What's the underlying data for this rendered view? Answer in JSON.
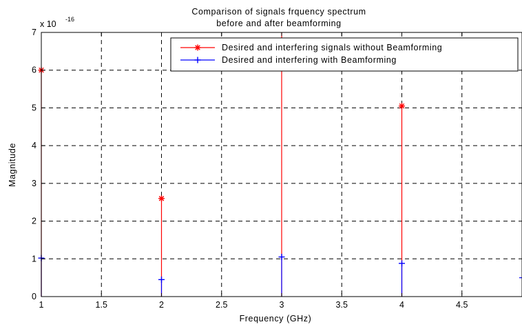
{
  "chart_data": {
    "type": "stem",
    "title_lines": [
      "Comparison of signals frquency spectrum",
      "before and after beamforming"
    ],
    "xlabel": "Frequency (GHz)",
    "ylabel": "Magnitude",
    "y_exponent_label": "x 10",
    "y_exponent": "-16",
    "xlim": [
      1,
      5
    ],
    "ylim": [
      0,
      7
    ],
    "x_ticks": [
      1,
      1.5,
      2,
      2.5,
      3,
      3.5,
      4,
      4.5
    ],
    "x_tick_labels": [
      "1",
      "1.5",
      "2",
      "2.5",
      "3",
      "3.5",
      "4",
      "4.5"
    ],
    "y_ticks": [
      0,
      1,
      2,
      3,
      4,
      5,
      6,
      7
    ],
    "y_tick_labels": [
      "0",
      "1",
      "2",
      "3",
      "4",
      "5",
      "6",
      "7"
    ],
    "grid": true,
    "grid_style": "dashed",
    "legend_position": "top-right",
    "series": [
      {
        "name": "Desired and interfering signals without Beamforming",
        "color": "#ff0000",
        "marker": "asterisk",
        "x": [
          1,
          2,
          3,
          4
        ],
        "y": [
          6.0,
          2.6,
          7.5,
          5.05
        ]
      },
      {
        "name": "Desired and interfering with Beamforming",
        "color": "#0000ff",
        "marker": "plus",
        "x": [
          1,
          2,
          3,
          4
        ],
        "y": [
          1.02,
          0.45,
          1.05,
          0.88
        ]
      }
    ],
    "edge_point": {
      "x": 5,
      "y": 0.5,
      "color": "#0000ff"
    }
  }
}
